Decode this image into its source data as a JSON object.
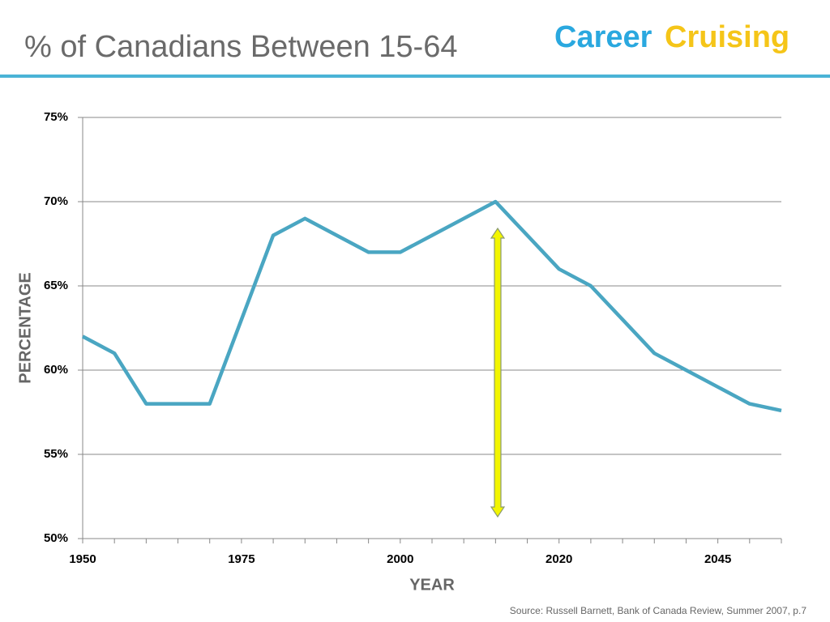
{
  "chart_data": {
    "type": "line",
    "title": "% of Canadians Between 15-64",
    "brand": [
      "Career",
      "Cruising"
    ],
    "source": "Source: Russell Barnett, Bank of Canada Review, Summer 2007, p.7",
    "xlabel": "YEAR",
    "ylabel": "PERCENTAGE",
    "categories": [
      "1950",
      null,
      null,
      null,
      null,
      "1975",
      null,
      null,
      null,
      null,
      "2000",
      null,
      null,
      null,
      null,
      "2020",
      null,
      null,
      null,
      null,
      "2045",
      null,
      null
    ],
    "series": [
      {
        "name": "% of Canadians Between 15-64",
        "color": "#4aa6c2",
        "values": [
          62,
          61,
          58,
          58,
          58,
          63,
          68,
          69,
          68,
          67,
          67,
          68,
          69,
          70,
          68,
          66,
          65,
          63,
          61,
          60,
          59,
          58,
          57.6
        ]
      }
    ],
    "ylim": [
      50,
      75
    ],
    "yticks": [
      {
        "value": 50,
        "label": "50%"
      },
      {
        "value": 55,
        "label": "55%"
      },
      {
        "value": 60,
        "label": "60%"
      },
      {
        "value": 65,
        "label": "65%"
      },
      {
        "value": 70,
        "label": "70%"
      },
      {
        "value": 75,
        "label": "75%"
      }
    ],
    "grid": true
  }
}
